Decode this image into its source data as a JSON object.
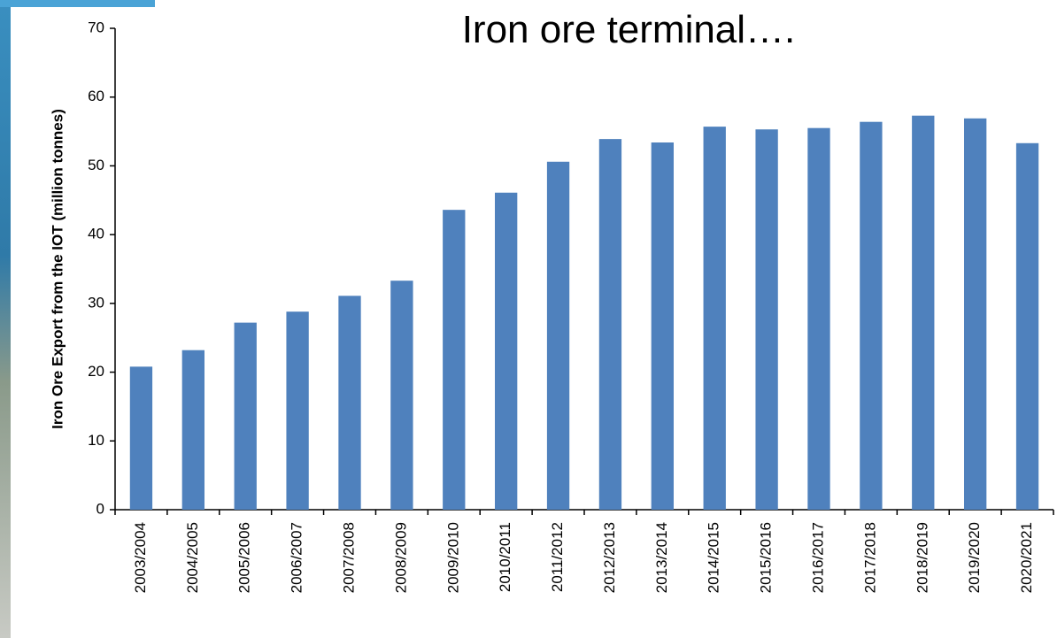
{
  "chart_data": {
    "type": "bar",
    "title": "Iron ore terminal….",
    "y_label": "Iron Ore Export from the IOT (million tonnes)",
    "categories": [
      "2003/2004",
      "2004/2005",
      "2005/2006",
      "2006/2007",
      "2007/2008",
      "2008/2009",
      "2009/2010",
      "2010/2011",
      "2011/2012",
      "2012/2013",
      "2013/2014",
      "2014/2015",
      "2015/2016",
      "2016/2017",
      "2017/2018",
      "2018/2019",
      "2019/2020",
      "2020/2021"
    ],
    "values": [
      20.8,
      23.2,
      27.2,
      28.8,
      31.1,
      33.3,
      43.6,
      46.1,
      50.6,
      53.9,
      53.4,
      55.7,
      55.3,
      55.5,
      56.4,
      57.3,
      56.9,
      53.3
    ],
    "color": "#4f81bd",
    "ylim": [
      0,
      70
    ],
    "yticks": [
      0,
      10,
      20,
      30,
      40,
      50,
      60,
      70
    ]
  }
}
